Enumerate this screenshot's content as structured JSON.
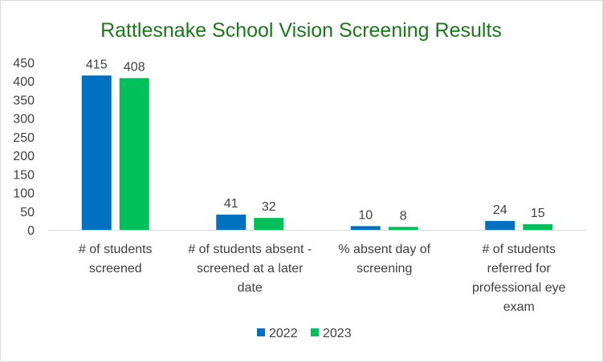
{
  "chart_data": {
    "type": "bar",
    "title": "Rattlesnake School Vision Screening Results",
    "categories": [
      [
        "# of students",
        "screened"
      ],
      [
        "# of students absent -",
        "screened at a later",
        "date"
      ],
      [
        "% absent day of",
        "screening"
      ],
      [
        "# of students",
        "referred for",
        "professional eye",
        "exam"
      ]
    ],
    "series": [
      {
        "name": "2022",
        "color": "#0070c0",
        "values": [
          415,
          41,
          10,
          24
        ]
      },
      {
        "name": "2023",
        "color": "#00c05a",
        "values": [
          408,
          32,
          8,
          15
        ]
      }
    ],
    "ylim": [
      0,
      450
    ],
    "yticks": [
      0,
      50,
      100,
      150,
      200,
      250,
      300,
      350,
      400,
      450
    ],
    "title_color": "#1a7a1a",
    "grid": false,
    "legend_position": "bottom"
  }
}
